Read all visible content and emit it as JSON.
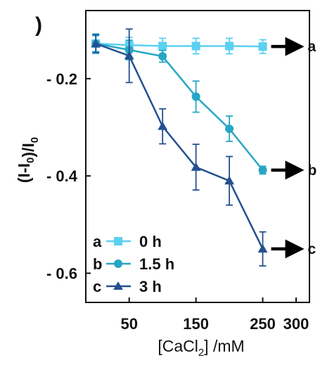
{
  "chart_data": {
    "type": "line",
    "title": "",
    "xlabel": "[CaCl2] /mM",
    "ylabel": "(I-I0)/I0",
    "xlim": [
      -15,
      320
    ],
    "ylim": [
      -0.66,
      -0.06
    ],
    "xticks": [
      50,
      150,
      250,
      300
    ],
    "xtick_labels": [
      "50",
      "150",
      "250",
      "300"
    ],
    "yticks": [
      -0.2,
      -0.4,
      -0.6
    ],
    "ytick_labels": [
      "- 0.2",
      "- 0.4",
      "- 0.6"
    ],
    "grid": false,
    "legend_placement": "bottom-left",
    "panel_label": ")",
    "series": [
      {
        "name": "0 h",
        "letter": "a",
        "marker": "square",
        "color": "#5bd0f0",
        "x": [
          0,
          50,
          100,
          150,
          200,
          250
        ],
        "y": [
          -0.128,
          -0.131,
          -0.133,
          -0.133,
          -0.133,
          -0.134
        ],
        "err": [
          0.016,
          0.016,
          0.016,
          0.016,
          0.016,
          0.014
        ],
        "arrow_label": "a"
      },
      {
        "name": "1.5 h",
        "letter": "b",
        "marker": "circle",
        "color": "#27a6c4",
        "x": [
          0,
          50,
          100,
          150,
          200,
          250
        ],
        "y": [
          -0.128,
          -0.141,
          -0.154,
          -0.237,
          -0.303,
          -0.388
        ],
        "err": [
          0.02,
          0.02,
          0.012,
          0.032,
          0.026,
          0.008
        ],
        "arrow_label": "b"
      },
      {
        "name": "3 h",
        "letter": "c",
        "marker": "triangle",
        "color": "#23508f",
        "x": [
          0,
          50,
          100,
          150,
          200,
          250
        ],
        "y": [
          -0.128,
          -0.153,
          -0.298,
          -0.382,
          -0.41,
          -0.55
        ],
        "err": [
          0.018,
          0.055,
          0.036,
          0.047,
          0.05,
          0.035
        ],
        "arrow_label": "c"
      }
    ]
  }
}
